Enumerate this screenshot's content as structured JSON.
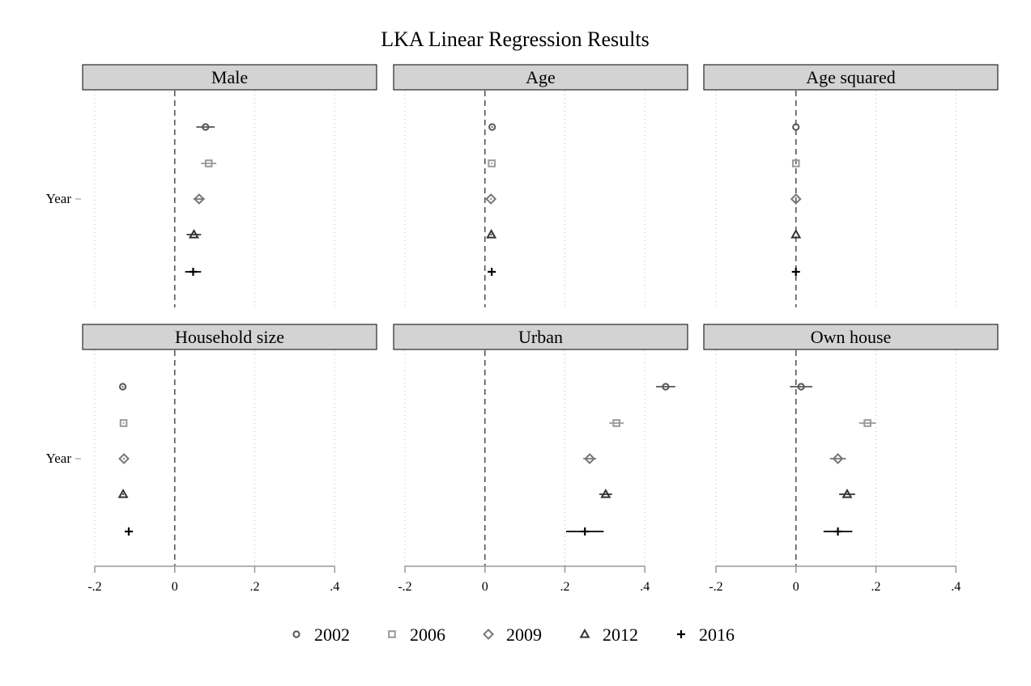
{
  "chart_data": {
    "type": "scatter",
    "title": "LKA Linear Regression Results",
    "x_ticks": [
      -0.2,
      0,
      0.2,
      0.4
    ],
    "x_tick_labels": [
      "-.2",
      "0",
      ".2",
      ".4"
    ],
    "xlim": [
      -0.2,
      0.4
    ],
    "y_label": "Year",
    "reference_line_x": 0,
    "grid": "vertical dotted at x ticks",
    "legend_position": "bottom",
    "series": [
      {
        "name": "2002",
        "marker": "circle",
        "color": "#555555"
      },
      {
        "name": "2006",
        "marker": "square",
        "color": "#999999"
      },
      {
        "name": "2009",
        "marker": "diamond",
        "color": "#777777"
      },
      {
        "name": "2012",
        "marker": "triangle",
        "color": "#333333"
      },
      {
        "name": "2016",
        "marker": "plus",
        "color": "#000000"
      }
    ],
    "panels": [
      {
        "title": "Male",
        "estimates": [
          {
            "year": "2002",
            "coef": 0.077,
            "ci": [
              0.054,
              0.1
            ]
          },
          {
            "year": "2006",
            "coef": 0.085,
            "ci": [
              0.066,
              0.104
            ]
          },
          {
            "year": "2009",
            "coef": 0.061,
            "ci": [
              0.047,
              0.075
            ]
          },
          {
            "year": "2012",
            "coef": 0.048,
            "ci": [
              0.03,
              0.066
            ]
          },
          {
            "year": "2016",
            "coef": 0.046,
            "ci": [
              0.026,
              0.066
            ]
          }
        ]
      },
      {
        "title": "Age",
        "estimates": [
          {
            "year": "2002",
            "coef": 0.018,
            "ci": [
              0.016,
              0.02
            ]
          },
          {
            "year": "2006",
            "coef": 0.017,
            "ci": [
              0.015,
              0.019
            ]
          },
          {
            "year": "2009",
            "coef": 0.015,
            "ci": [
              0.013,
              0.017
            ]
          },
          {
            "year": "2012",
            "coef": 0.016,
            "ci": [
              0.014,
              0.018
            ]
          },
          {
            "year": "2016",
            "coef": 0.017,
            "ci": [
              0.014,
              0.02
            ]
          }
        ]
      },
      {
        "title": "Age squared",
        "estimates": [
          {
            "year": "2002",
            "coef": 0.0,
            "ci": [
              0.0,
              0.0
            ]
          },
          {
            "year": "2006",
            "coef": 0.0,
            "ci": [
              0.0,
              0.0
            ]
          },
          {
            "year": "2009",
            "coef": 0.0,
            "ci": [
              0.0,
              0.0
            ]
          },
          {
            "year": "2012",
            "coef": 0.0,
            "ci": [
              0.0,
              0.0
            ]
          },
          {
            "year": "2016",
            "coef": 0.0,
            "ci": [
              0.0,
              0.0
            ]
          }
        ]
      },
      {
        "title": "Household size",
        "estimates": [
          {
            "year": "2002",
            "coef": -0.13,
            "ci": [
              -0.132,
              -0.128
            ]
          },
          {
            "year": "2006",
            "coef": -0.128,
            "ci": [
              -0.13,
              -0.126
            ]
          },
          {
            "year": "2009",
            "coef": -0.127,
            "ci": [
              -0.129,
              -0.125
            ]
          },
          {
            "year": "2012",
            "coef": -0.129,
            "ci": [
              -0.131,
              -0.127
            ]
          },
          {
            "year": "2016",
            "coef": -0.115,
            "ci": [
              -0.118,
              -0.112
            ]
          }
        ]
      },
      {
        "title": "Urban",
        "estimates": [
          {
            "year": "2002",
            "coef": 0.452,
            "ci": [
              0.428,
              0.476
            ]
          },
          {
            "year": "2006",
            "coef": 0.329,
            "ci": [
              0.311,
              0.347
            ]
          },
          {
            "year": "2009",
            "coef": 0.262,
            "ci": [
              0.246,
              0.278
            ]
          },
          {
            "year": "2012",
            "coef": 0.302,
            "ci": [
              0.286,
              0.318
            ]
          },
          {
            "year": "2016",
            "coef": 0.25,
            "ci": [
              0.203,
              0.297
            ]
          }
        ]
      },
      {
        "title": "Own house",
        "estimates": [
          {
            "year": "2002",
            "coef": 0.013,
            "ci": [
              -0.015,
              0.041
            ]
          },
          {
            "year": "2006",
            "coef": 0.179,
            "ci": [
              0.158,
              0.2
            ]
          },
          {
            "year": "2009",
            "coef": 0.105,
            "ci": [
              0.085,
              0.125
            ]
          },
          {
            "year": "2012",
            "coef": 0.128,
            "ci": [
              0.108,
              0.148
            ]
          },
          {
            "year": "2016",
            "coef": 0.105,
            "ci": [
              0.069,
              0.141
            ]
          }
        ]
      }
    ]
  }
}
